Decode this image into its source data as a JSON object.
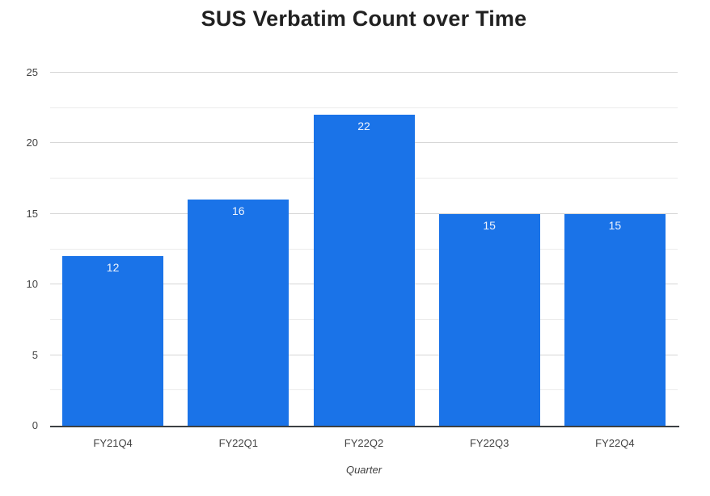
{
  "chart_data": {
    "type": "bar",
    "title": "SUS Verbatim Count over Time",
    "categories": [
      "FY21Q4",
      "FY22Q1",
      "FY22Q2",
      "FY22Q3",
      "FY22Q4"
    ],
    "values": [
      12,
      16,
      22,
      15,
      15
    ],
    "value_labels": [
      "12",
      "16",
      "22",
      "15",
      "15"
    ],
    "xlabel": "Quarter",
    "ylabel": "",
    "ylim": [
      0,
      25
    ],
    "y_major_ticks": [
      0,
      5,
      10,
      15,
      20,
      25
    ],
    "y_tick_labels": [
      "0",
      "5",
      "10",
      "15",
      "20",
      "25"
    ],
    "y_minor_step": 2.5,
    "grid": true,
    "legend": "none",
    "colors": {
      "bar": "#1a73e8",
      "value_label": "#eef3fc",
      "major_gridline": "#d6d6d6",
      "minor_gridline": "#ececec",
      "axis_line": "#3c4043",
      "title_text": "#212121",
      "tick_text": "#424242"
    }
  }
}
